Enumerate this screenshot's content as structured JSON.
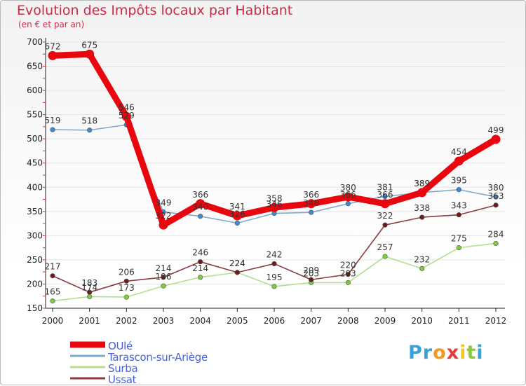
{
  "title": "Evolution des Impôts locaux par Habitant",
  "subtitle": "(en € et par an)",
  "logo": "Proxiti",
  "logo_letters": [
    "P",
    "r",
    "o",
    "x",
    "i",
    "t",
    "i"
  ],
  "logo_colors": [
    "#3aa0d8",
    "#3aa0d8",
    "#f39a1e",
    "#e43b3b",
    "#f3c61e",
    "#8dc63f",
    "#3aa0d8"
  ],
  "chart_data": {
    "type": "line",
    "title": "Evolution des Impôts locaux par Habitant",
    "subtitle": "(en € et par an)",
    "xlabel": "",
    "ylabel": "",
    "ylim": [
      150,
      700
    ],
    "yticks": [
      150,
      200,
      250,
      300,
      350,
      400,
      450,
      500,
      550,
      600,
      650,
      700
    ],
    "categories": [
      "2000",
      "2001",
      "2002",
      "2003",
      "2004",
      "2005",
      "2006",
      "2007",
      "2008",
      "2009",
      "2010",
      "2011",
      "2012"
    ],
    "grid": "horizontal",
    "legend_position": "bottom-left",
    "series": [
      {
        "name": "OUlé",
        "color": "#e8070e",
        "marker_color": "#e8070e",
        "bold": true,
        "values": [
          672,
          675,
          546,
          322,
          366,
          341,
          358,
          366,
          380,
          366,
          389,
          454,
          499
        ]
      },
      {
        "name": "Tarascon-sur-Ariège",
        "color": "#7fa9cf",
        "marker_color": "#3f8ad0",
        "bold": false,
        "values": [
          519,
          518,
          529,
          349,
          340,
          326,
          346,
          348,
          366,
          381,
          389,
          395,
          380
        ]
      },
      {
        "name": "Surba",
        "color": "#b5de8e",
        "marker_color": "#7ccd3a",
        "bold": false,
        "values": [
          165,
          174,
          173,
          196,
          214,
          224,
          195,
          203,
          203,
          257,
          232,
          275,
          284
        ]
      },
      {
        "name": "Ussat",
        "color": "#8a3b3f",
        "marker_color": "#6b1c1c",
        "bold": false,
        "values": [
          217,
          183,
          206,
          214,
          246,
          224,
          242,
          209,
          220,
          322,
          338,
          343,
          363
        ]
      }
    ],
    "data_labels": {
      "OUlé": [
        "672",
        "675",
        "546",
        "322",
        "366",
        "341",
        "358",
        "366",
        "380",
        "366",
        "389",
        "454",
        "499"
      ],
      "Tarascon-sur-Ariège": [
        "519",
        "518",
        "529",
        "349",
        "340",
        "326",
        "346",
        "348",
        "366",
        "381",
        "389",
        "395",
        "380"
      ],
      "Surba": [
        "165",
        "174",
        "173",
        "196",
        "214",
        "224",
        "195",
        "203",
        "203",
        "257",
        "232",
        "275",
        "284"
      ],
      "Ussat": [
        "217",
        "183",
        "206",
        "214",
        "246",
        "224",
        "242",
        "209",
        "220",
        "322",
        "338",
        "343",
        "363"
      ]
    }
  }
}
